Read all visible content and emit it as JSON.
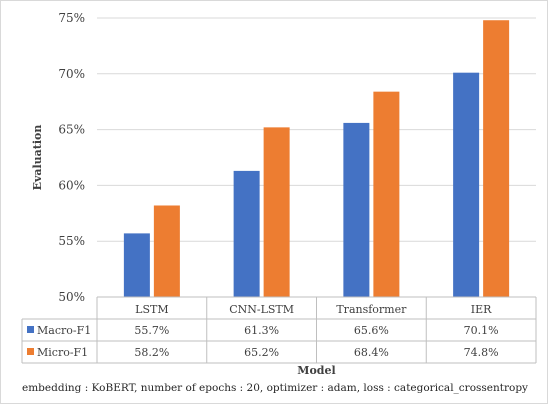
{
  "chart_data": {
    "type": "bar",
    "xlabel": "Model",
    "ylabel": "Evaluation",
    "categories": [
      "LSTM",
      "CNN-LSTM",
      "Transformer",
      "IER"
    ],
    "series": [
      {
        "name": "Macro-F1",
        "color": "#4472c4",
        "values": [
          55.7,
          61.3,
          65.6,
          70.1
        ],
        "labels": [
          "55.7%",
          "61.3%",
          "65.6%",
          "70.1%"
        ]
      },
      {
        "name": "Micro-F1",
        "color": "#ed7d31",
        "values": [
          58.2,
          65.2,
          68.4,
          74.8
        ],
        "labels": [
          "58.2%",
          "65.2%",
          "68.4%",
          "74.8%"
        ]
      }
    ],
    "ylim": [
      50,
      75
    ],
    "yticks": [
      50,
      55,
      60,
      65,
      70,
      75
    ],
    "ytick_labels": [
      "50%",
      "55%",
      "60%",
      "65%",
      "70%",
      "75%"
    ],
    "grid": true,
    "legend": "data table below plot",
    "caption": "embedding : KoBERT, number of epochs : 20, optimizer : adam, loss : categorical_crossentropy"
  }
}
